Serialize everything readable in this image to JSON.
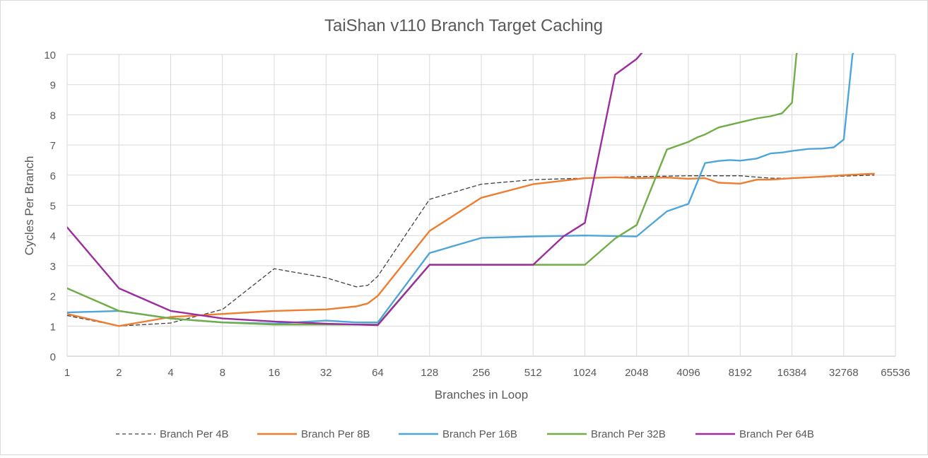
{
  "chart_data": {
    "type": "line",
    "title": "TaiShan v110 Branch Target Caching",
    "xlabel": "Branches in Loop",
    "ylabel": "Cycles Per Branch",
    "x_scale": "log2",
    "xlim": [
      1,
      65536
    ],
    "ylim": [
      0,
      10
    ],
    "x_ticks": [
      "1",
      "2",
      "4",
      "8",
      "16",
      "32",
      "64",
      "128",
      "256",
      "512",
      "1024",
      "2048",
      "4096",
      "8192",
      "16384",
      "32768",
      "65536"
    ],
    "y_ticks": [
      "0",
      "1",
      "2",
      "3",
      "4",
      "5",
      "6",
      "7",
      "8",
      "9",
      "10"
    ],
    "grid": "vertical and horizontal",
    "legend_position": "bottom",
    "series": [
      {
        "name": "Branch Per 4B",
        "color": "#404040",
        "dash": "dashed",
        "x": [
          1,
          2,
          4,
          8,
          16,
          32,
          48,
          56,
          64,
          128,
          256,
          512,
          1024,
          2048,
          4096,
          8192,
          12288,
          16384,
          32768,
          49152
        ],
        "y": [
          1.35,
          1.0,
          1.1,
          1.55,
          2.9,
          2.6,
          2.3,
          2.35,
          2.65,
          5.2,
          5.7,
          5.85,
          5.9,
          5.95,
          5.98,
          5.98,
          5.9,
          5.9,
          5.97,
          6.0
        ]
      },
      {
        "name": "Branch Per 8B",
        "color": "#ED7D31",
        "dash": "solid",
        "x": [
          1,
          2,
          4,
          8,
          16,
          32,
          48,
          56,
          64,
          128,
          256,
          512,
          1024,
          1536,
          2048,
          3072,
          4096,
          5120,
          6144,
          8192,
          10240,
          12288,
          16384,
          24576,
          32768,
          49152
        ],
        "y": [
          1.4,
          1.0,
          1.3,
          1.4,
          1.5,
          1.55,
          1.65,
          1.75,
          2.0,
          4.15,
          5.25,
          5.7,
          5.9,
          5.93,
          5.9,
          5.92,
          5.88,
          5.9,
          5.75,
          5.72,
          5.85,
          5.85,
          5.9,
          5.95,
          6.0,
          6.05
        ]
      },
      {
        "name": "Branch Per 16B",
        "color": "#4EA5D9",
        "dash": "solid",
        "x": [
          1,
          2,
          4,
          8,
          16,
          32,
          48,
          64,
          128,
          256,
          512,
          1024,
          2048,
          3072,
          4096,
          5120,
          6144,
          7168,
          8192,
          10240,
          12288,
          14336,
          16384,
          20480,
          24576,
          28672,
          32768,
          36864,
          40960
        ],
        "y": [
          1.45,
          1.5,
          1.25,
          1.12,
          1.08,
          1.18,
          1.12,
          1.12,
          3.42,
          3.92,
          3.97,
          4.0,
          3.97,
          4.8,
          5.05,
          6.4,
          6.47,
          6.5,
          6.48,
          6.55,
          6.72,
          6.75,
          6.8,
          6.87,
          6.88,
          6.92,
          7.18,
          10.0,
          10.5
        ]
      },
      {
        "name": "Branch Per 32B",
        "color": "#70AD47",
        "dash": "solid",
        "x": [
          1,
          2,
          4,
          8,
          16,
          32,
          64,
          128,
          256,
          512,
          1024,
          1536,
          2048,
          3072,
          4096,
          4608,
          5120,
          6144,
          8192,
          10240,
          12288,
          14336,
          16384,
          17408,
          18432
        ],
        "y": [
          2.25,
          1.5,
          1.25,
          1.12,
          1.05,
          1.05,
          1.05,
          3.03,
          3.03,
          3.03,
          3.03,
          3.9,
          4.35,
          6.85,
          7.1,
          7.25,
          7.35,
          7.58,
          7.75,
          7.88,
          7.95,
          8.05,
          8.4,
          10.0,
          10.5
        ]
      },
      {
        "name": "Branch Per 64B",
        "color": "#9B2D9E",
        "dash": "solid",
        "x": [
          1,
          2,
          4,
          8,
          16,
          32,
          64,
          128,
          256,
          512,
          768,
          1024,
          1536,
          2048,
          2560
        ],
        "y": [
          4.27,
          2.25,
          1.5,
          1.25,
          1.15,
          1.08,
          1.03,
          3.03,
          3.03,
          3.03,
          3.97,
          4.42,
          9.33,
          9.85,
          10.5
        ]
      }
    ]
  }
}
